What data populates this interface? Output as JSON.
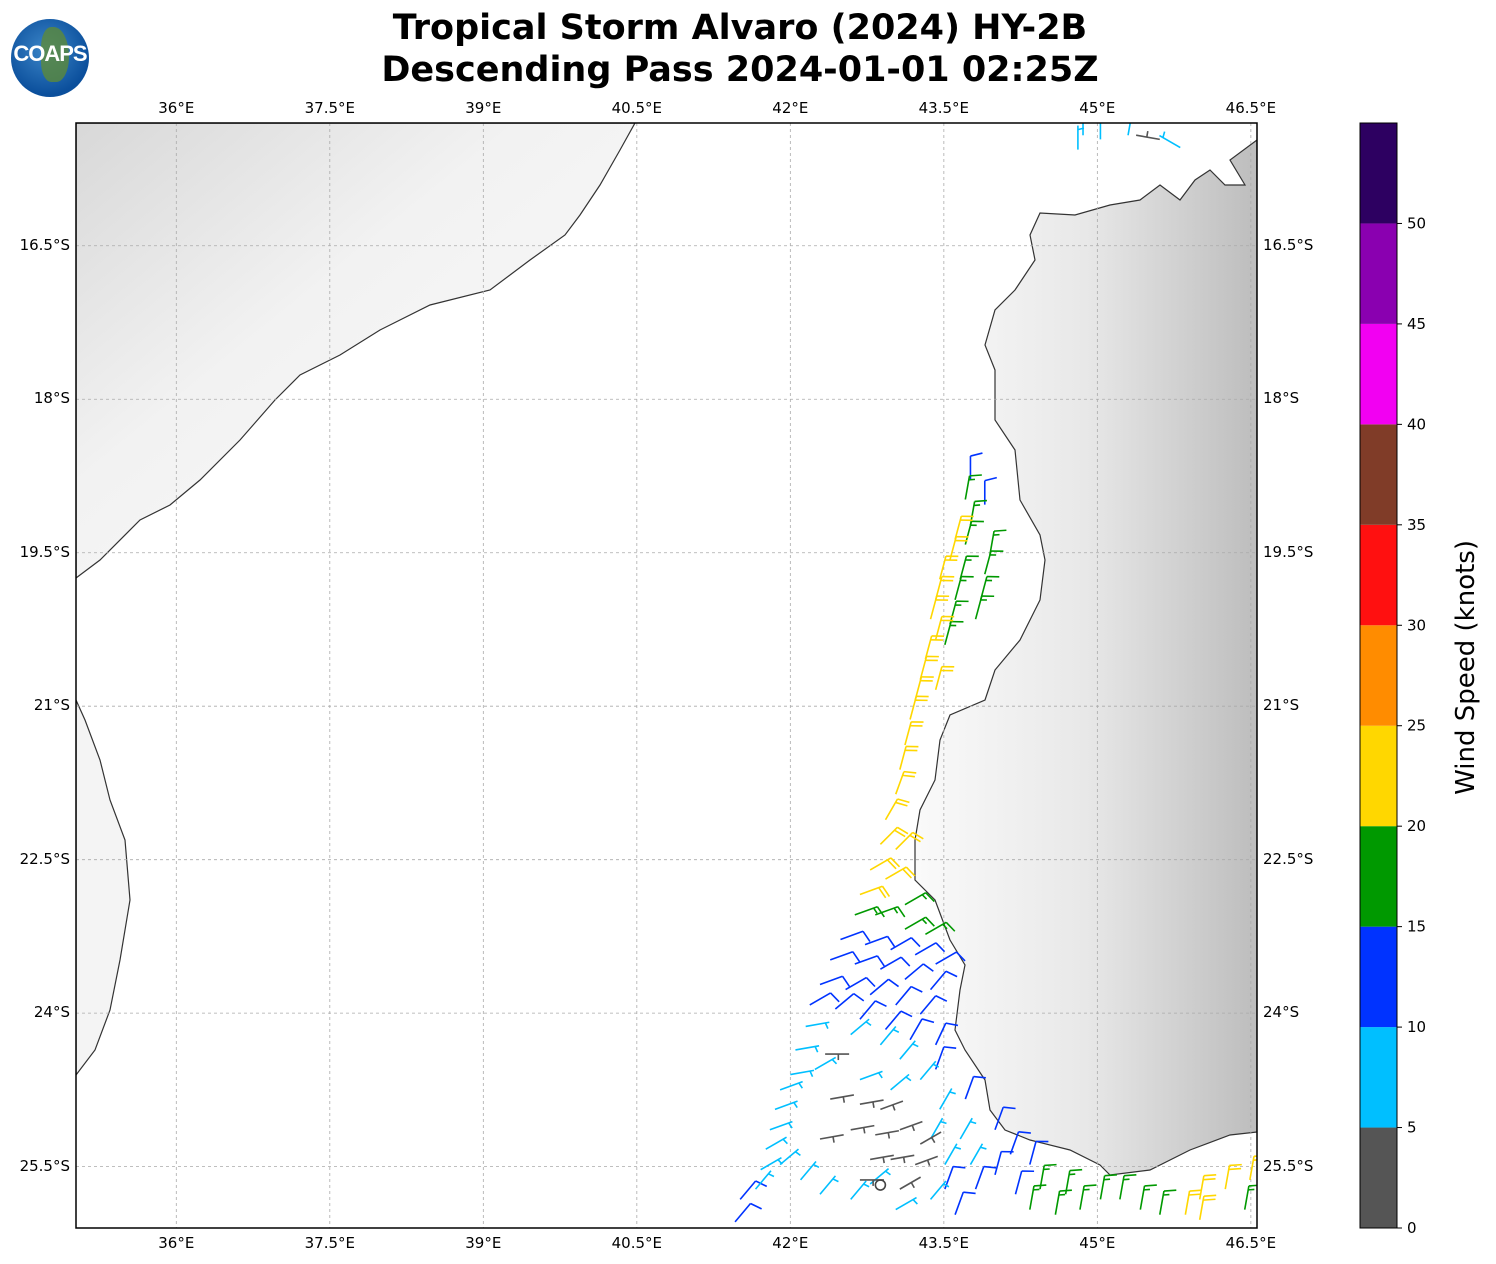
{
  "title_line1": "Tropical Storm Alvaro (2024) HY-2B",
  "title_line2": "Descending Pass 2024-01-01 02:25Z",
  "logo_text": "COAPS",
  "map": {
    "lon_range": [
      35.02,
      46.56
    ],
    "lat_range_south": [
      15.3,
      26.1
    ],
    "lon_ticks": [
      36,
      37.5,
      39,
      40.5,
      42,
      43.5,
      45,
      46.5
    ],
    "lon_tick_labels": [
      "36°E",
      "37.5°E",
      "39°E",
      "40.5°E",
      "42°E",
      "43.5°E",
      "45°E",
      "46.5°E"
    ],
    "lat_ticks": [
      16.5,
      18,
      19.5,
      21,
      22.5,
      24,
      25.5
    ],
    "lat_tick_labels": [
      "16.5°S",
      "18°S",
      "19.5°S",
      "21°S",
      "22.5°S",
      "24°S",
      "25.5°S"
    ]
  },
  "colorbar": {
    "label": "Wind Speed (knots)",
    "tick_labels": [
      "0",
      "5",
      "10",
      "15",
      "20",
      "25",
      "30",
      "35",
      "40",
      "45",
      "50"
    ],
    "bins": [
      0,
      5,
      10,
      15,
      20,
      25,
      30,
      35,
      40,
      45,
      50,
      55
    ],
    "colors": [
      "#555555",
      "#00bfff",
      "#0033ff",
      "#009900",
      "#ffd700",
      "#ff8c00",
      "#ff1010",
      "#803c28",
      "#f200f2",
      "#8a00b0",
      "#2d0061"
    ]
  },
  "barb_fields": [
    "lon_E",
    "lat_S",
    "speed_kt",
    "dir_from_deg"
  ],
  "barbs": [
    [
      44.81,
      15.56,
      8,
      0
    ],
    [
      44.86,
      15.42,
      8,
      0
    ],
    [
      45.03,
      15.46,
      8,
      0
    ],
    [
      45.3,
      15.42,
      6,
      10
    ],
    [
      45.61,
      15.46,
      4,
      280
    ],
    [
      45.81,
      15.54,
      7,
      300
    ],
    [
      43.76,
      18.79,
      12,
      0
    ],
    [
      43.9,
      19.03,
      13,
      0
    ],
    [
      43.71,
      18.98,
      17,
      10
    ],
    [
      43.76,
      19.23,
      18,
      10
    ],
    [
      43.71,
      19.42,
      18,
      15
    ],
    [
      43.95,
      19.52,
      17,
      10
    ],
    [
      43.9,
      19.71,
      18,
      15
    ],
    [
      43.66,
      19.76,
      18,
      15
    ],
    [
      43.86,
      19.96,
      17,
      15
    ],
    [
      43.61,
      19.96,
      18,
      15
    ],
    [
      43.81,
      20.15,
      17,
      15
    ],
    [
      43.56,
      20.2,
      18,
      15
    ],
    [
      43.51,
      20.4,
      18,
      15
    ],
    [
      43.61,
      19.37,
      22,
      15
    ],
    [
      43.56,
      19.57,
      22,
      15
    ],
    [
      43.46,
      19.76,
      22,
      15
    ],
    [
      43.42,
      19.96,
      22,
      15
    ],
    [
      43.37,
      20.15,
      22,
      15
    ],
    [
      43.42,
      20.35,
      23,
      15
    ],
    [
      43.32,
      20.54,
      22,
      15
    ],
    [
      43.27,
      20.74,
      22,
      15
    ],
    [
      43.42,
      20.84,
      22,
      15
    ],
    [
      43.22,
      20.94,
      22,
      15
    ],
    [
      43.17,
      21.13,
      22,
      15
    ],
    [
      43.12,
      21.38,
      22,
      15
    ],
    [
      43.07,
      21.62,
      22,
      15
    ],
    [
      43.03,
      21.86,
      22,
      20
    ],
    [
      42.93,
      22.11,
      22,
      30
    ],
    [
      42.88,
      22.35,
      22,
      45
    ],
    [
      43.03,
      22.4,
      22,
      45
    ],
    [
      42.78,
      22.6,
      22,
      60
    ],
    [
      42.93,
      22.69,
      22,
      60
    ],
    [
      42.68,
      22.84,
      21,
      70
    ],
    [
      42.63,
      23.04,
      17,
      70
    ],
    [
      42.83,
      23.04,
      17,
      70
    ],
    [
      43.12,
      22.94,
      17,
      60
    ],
    [
      43.12,
      23.18,
      17,
      60
    ],
    [
      43.32,
      23.23,
      17,
      60
    ],
    [
      42.49,
      23.28,
      12,
      70
    ],
    [
      42.73,
      23.33,
      12,
      70
    ],
    [
      42.98,
      23.38,
      12,
      60
    ],
    [
      43.22,
      23.43,
      12,
      60
    ],
    [
      43.42,
      23.52,
      12,
      60
    ],
    [
      42.39,
      23.48,
      12,
      70
    ],
    [
      42.63,
      23.52,
      12,
      70
    ],
    [
      42.88,
      23.57,
      12,
      60
    ],
    [
      43.12,
      23.67,
      12,
      50
    ],
    [
      43.37,
      23.77,
      12,
      40
    ],
    [
      42.29,
      23.72,
      12,
      70
    ],
    [
      42.54,
      23.77,
      12,
      60
    ],
    [
      42.78,
      23.82,
      12,
      50
    ],
    [
      43.03,
      23.92,
      12,
      40
    ],
    [
      43.27,
      24.01,
      12,
      40
    ],
    [
      42.19,
      23.92,
      12,
      60
    ],
    [
      42.44,
      23.96,
      12,
      50
    ],
    [
      42.68,
      24.06,
      12,
      40
    ],
    [
      42.93,
      24.16,
      12,
      40
    ],
    [
      43.17,
      24.26,
      12,
      30
    ],
    [
      43.42,
      24.31,
      13,
      25
    ],
    [
      43.42,
      24.55,
      13,
      20
    ],
    [
      43.71,
      24.84,
      13,
      20
    ],
    [
      44.0,
      25.14,
      13,
      20
    ],
    [
      44.15,
      25.38,
      13,
      20
    ],
    [
      44.34,
      25.48,
      13,
      15
    ],
    [
      43.51,
      25.72,
      13,
      20
    ],
    [
      43.81,
      25.72,
      13,
      20
    ],
    [
      44.0,
      25.58,
      13,
      15
    ],
    [
      43.61,
      25.97,
      13,
      20
    ],
    [
      41.51,
      25.82,
      13,
      40
    ],
    [
      41.46,
      26.04,
      13,
      40
    ],
    [
      44.2,
      25.77,
      13,
      15
    ],
    [
      42.15,
      24.13,
      8,
      80
    ],
    [
      42.05,
      24.36,
      7,
      80
    ],
    [
      42.24,
      24.55,
      8,
      60
    ],
    [
      42.0,
      24.6,
      8,
      80
    ],
    [
      42.59,
      24.21,
      8,
      50
    ],
    [
      42.88,
      24.31,
      9,
      40
    ],
    [
      43.07,
      24.45,
      9,
      40
    ],
    [
      42.68,
      24.65,
      8,
      70
    ],
    [
      42.98,
      24.75,
      8,
      50
    ],
    [
      43.27,
      24.65,
      9,
      40
    ],
    [
      43.46,
      24.94,
      9,
      30
    ],
    [
      43.66,
      25.23,
      9,
      30
    ],
    [
      41.9,
      24.75,
      8,
      70
    ],
    [
      41.85,
      24.94,
      8,
      70
    ],
    [
      41.8,
      25.14,
      8,
      70
    ],
    [
      41.76,
      25.33,
      8,
      60
    ],
    [
      41.71,
      25.53,
      8,
      60
    ],
    [
      41.66,
      25.72,
      8,
      40
    ],
    [
      41.9,
      25.48,
      8,
      50
    ],
    [
      42.1,
      25.63,
      8,
      40
    ],
    [
      42.29,
      25.77,
      8,
      40
    ],
    [
      42.59,
      25.82,
      8,
      40
    ],
    [
      42.78,
      25.67,
      8,
      50
    ],
    [
      43.03,
      25.92,
      7,
      60
    ],
    [
      43.37,
      25.82,
      8,
      40
    ],
    [
      43.51,
      25.48,
      8,
      30
    ],
    [
      43.76,
      25.48,
      8,
      30
    ],
    [
      43.37,
      25.23,
      9,
      30
    ],
    [
      42.34,
      24.4,
      3,
      90
    ],
    [
      42.39,
      24.84,
      3,
      80
    ],
    [
      42.68,
      24.89,
      3,
      80
    ],
    [
      42.88,
      24.94,
      3,
      70
    ],
    [
      42.29,
      25.23,
      3,
      80
    ],
    [
      42.59,
      25.14,
      3,
      80
    ],
    [
      42.83,
      25.19,
      3,
      80
    ],
    [
      43.07,
      25.14,
      3,
      70
    ],
    [
      43.27,
      25.28,
      3,
      60
    ],
    [
      42.78,
      25.43,
      3,
      80
    ],
    [
      42.98,
      25.43,
      3,
      80
    ],
    [
      43.22,
      25.48,
      3,
      70
    ],
    [
      42.68,
      25.63,
      3,
      90
    ],
    [
      43.07,
      25.72,
      3,
      60
    ],
    [
      44.34,
      25.92,
      17,
      10
    ],
    [
      44.59,
      25.97,
      17,
      10
    ],
    [
      44.83,
      25.92,
      17,
      10
    ],
    [
      45.03,
      25.82,
      17,
      10
    ],
    [
      45.22,
      25.82,
      17,
      10
    ],
    [
      44.44,
      25.72,
      17,
      10
    ],
    [
      44.69,
      25.77,
      17,
      10
    ],
    [
      45.61,
      25.97,
      17,
      10
    ],
    [
      45.42,
      25.92,
      17,
      10
    ],
    [
      46.44,
      25.92,
      17,
      10
    ],
    [
      45.86,
      25.97,
      22,
      10
    ],
    [
      46.0,
      25.82,
      22,
      10
    ],
    [
      46.25,
      25.72,
      22,
      10
    ],
    [
      46.49,
      25.63,
      22,
      10
    ],
    [
      46.0,
      26.02,
      22,
      10
    ]
  ],
  "center_marker": {
    "lon_E": 42.88,
    "lat_S": 25.68
  }
}
